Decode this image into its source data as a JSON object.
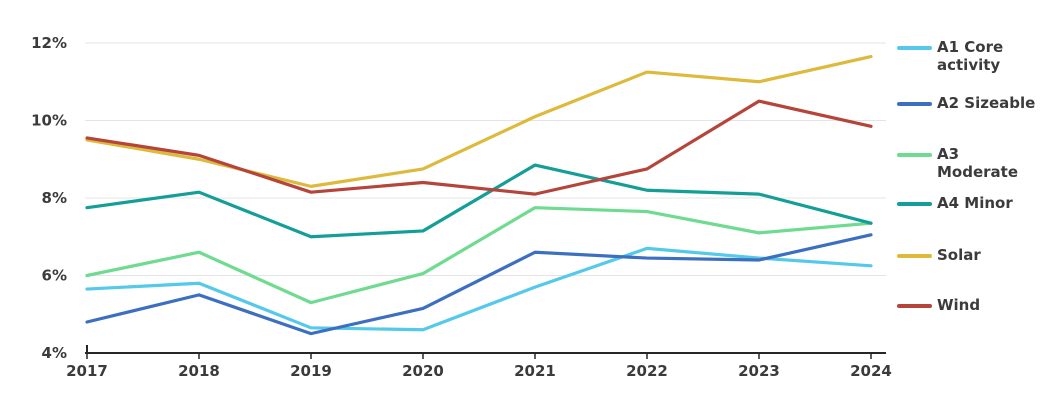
{
  "chart_data": {
    "type": "line",
    "title": "",
    "xlabel": "",
    "ylabel": "",
    "categories": [
      "2017",
      "2018",
      "2019",
      "2020",
      "2021",
      "2022",
      "2023",
      "2024"
    ],
    "y_ticks": [
      "4%",
      "6%",
      "8%",
      "10%",
      "12%"
    ],
    "ylim": [
      4,
      12
    ],
    "grid": "horizontal",
    "legend_position": "right",
    "series": [
      {
        "name": "A1 Core activity",
        "label_lines": [
          "A1 Core",
          "activity"
        ],
        "color": "#55C9E9",
        "values": [
          5.65,
          5.8,
          4.65,
          4.6,
          5.7,
          6.7,
          6.45,
          6.25
        ]
      },
      {
        "name": "A2 Sizeable",
        "label_lines": [
          "A2 Sizeable"
        ],
        "color": "#3D6FC0",
        "values": [
          4.8,
          5.5,
          4.5,
          5.15,
          6.6,
          6.45,
          6.4,
          7.05
        ]
      },
      {
        "name": "A3 Moderate",
        "label_lines": [
          "A3",
          "Moderate"
        ],
        "color": "#6FDB90",
        "values": [
          6.0,
          6.6,
          5.3,
          6.05,
          7.75,
          7.65,
          7.1,
          7.35
        ]
      },
      {
        "name": "A4 Minor",
        "label_lines": [
          "A4 Minor"
        ],
        "color": "#149E98",
        "values": [
          7.75,
          8.15,
          7.0,
          7.15,
          8.85,
          8.2,
          8.1,
          7.35
        ]
      },
      {
        "name": "Solar",
        "label_lines": [
          "Solar"
        ],
        "color": "#DDBA3C",
        "values": [
          9.5,
          9.0,
          8.3,
          8.75,
          10.1,
          11.25,
          11.0,
          11.65
        ]
      },
      {
        "name": "Wind",
        "label_lines": [
          "Wind"
        ],
        "color": "#B5443A",
        "values": [
          9.55,
          9.1,
          8.15,
          8.4,
          8.1,
          8.75,
          10.5,
          9.85
        ]
      }
    ]
  },
  "colors": {
    "axis": "#262626",
    "grid": "#e4e4e4",
    "tick_label": "#3b3b3b",
    "background": "#ffffff"
  }
}
